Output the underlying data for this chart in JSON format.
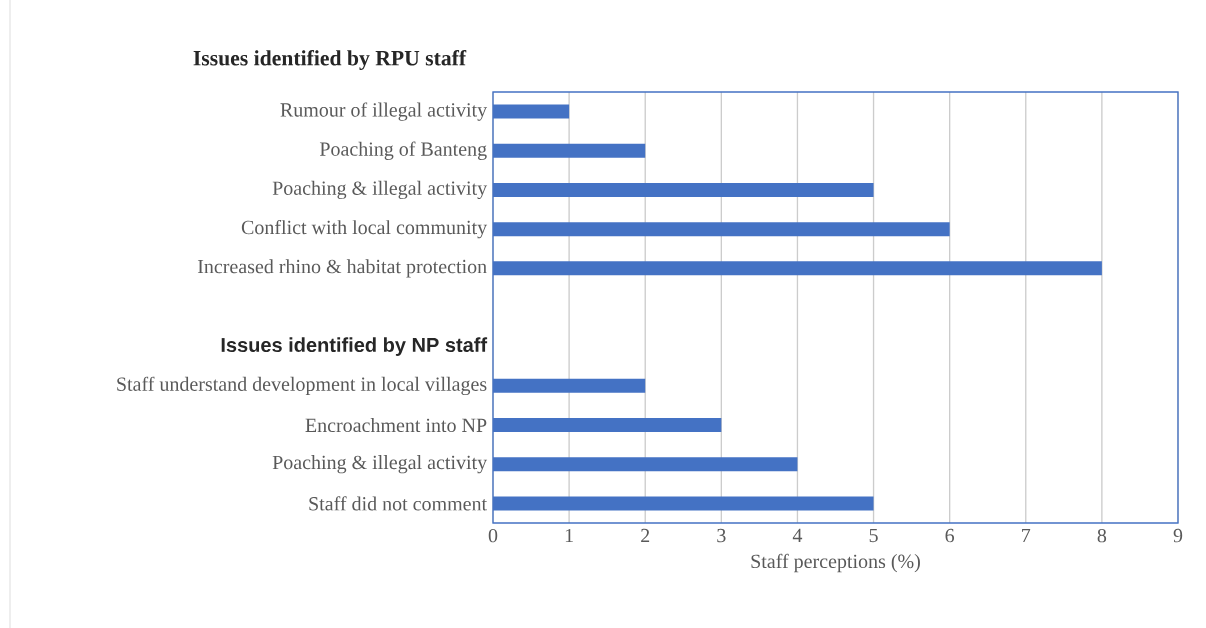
{
  "chart_data": {
    "type": "bar",
    "orientation": "horizontal",
    "title": "Issues identified by RPU staff",
    "xlabel": "Staff perceptions (%)",
    "categories": [
      "Rumour of illegal activity",
      "Poaching of Banteng",
      "Poaching & illegal activity",
      "Conflict with local community",
      "Increased rhino & habitat protection",
      null,
      "Issues identified by NP staff",
      "Staff understand development in local villages",
      "Encroachment into NP",
      "Poaching & illegal activity",
      "Staff did not comment"
    ],
    "values": [
      1,
      2,
      5,
      6,
      8,
      null,
      null,
      2,
      3,
      4,
      5
    ],
    "color": "#4472c4",
    "xlim": [
      0,
      9
    ],
    "xticks": [
      0,
      1,
      2,
      3,
      4,
      5,
      6,
      7,
      8,
      9
    ],
    "grid": "x"
  }
}
